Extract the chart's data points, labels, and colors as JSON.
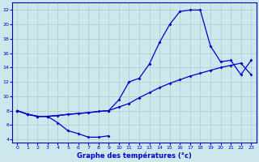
{
  "bg_color": "#cce8ec",
  "grid_color": "#aacccc",
  "line_color": "#0000cc",
  "xlabel": "Graphe des températures (°c)",
  "xlim": [
    -0.5,
    23.5
  ],
  "ylim": [
    3.5,
    23
  ],
  "xticks": [
    0,
    1,
    2,
    3,
    4,
    5,
    6,
    7,
    8,
    9,
    10,
    11,
    12,
    13,
    14,
    15,
    16,
    17,
    18,
    19,
    20,
    21,
    22,
    23
  ],
  "yticks": [
    4,
    6,
    8,
    10,
    12,
    14,
    16,
    18,
    20,
    22
  ],
  "curve_bottom_x": [
    0,
    1,
    2,
    3,
    4,
    5,
    6,
    7,
    8,
    9
  ],
  "curve_bottom_y": [
    8.0,
    7.5,
    7.2,
    7.2,
    6.3,
    5.2,
    4.8,
    4.3,
    4.3,
    4.5
  ],
  "curve_mid_x": [
    0,
    1,
    2,
    3,
    4,
    5,
    6,
    7,
    8,
    9,
    10,
    11,
    12,
    13,
    14,
    15,
    16,
    17,
    18,
    19,
    20,
    21,
    22,
    23
  ],
  "curve_mid_y": [
    8.0,
    7.5,
    7.2,
    7.2,
    7.3,
    7.5,
    7.6,
    7.7,
    7.9,
    8.0,
    8.5,
    9.0,
    9.8,
    10.5,
    11.2,
    11.8,
    12.3,
    12.8,
    13.2,
    13.6,
    14.0,
    14.3,
    14.6,
    13.0
  ],
  "curve_top_x": [
    0,
    1,
    2,
    3,
    9,
    10,
    11,
    12,
    13,
    14,
    15,
    16,
    17,
    18,
    19,
    20,
    21,
    22,
    23
  ],
  "curve_top_y": [
    8.0,
    7.5,
    7.2,
    7.2,
    8.0,
    9.5,
    12.0,
    12.5,
    14.5,
    17.5,
    20.0,
    21.8,
    22.0,
    22.0,
    17.0,
    14.8,
    15.0,
    13.0,
    15.0
  ]
}
